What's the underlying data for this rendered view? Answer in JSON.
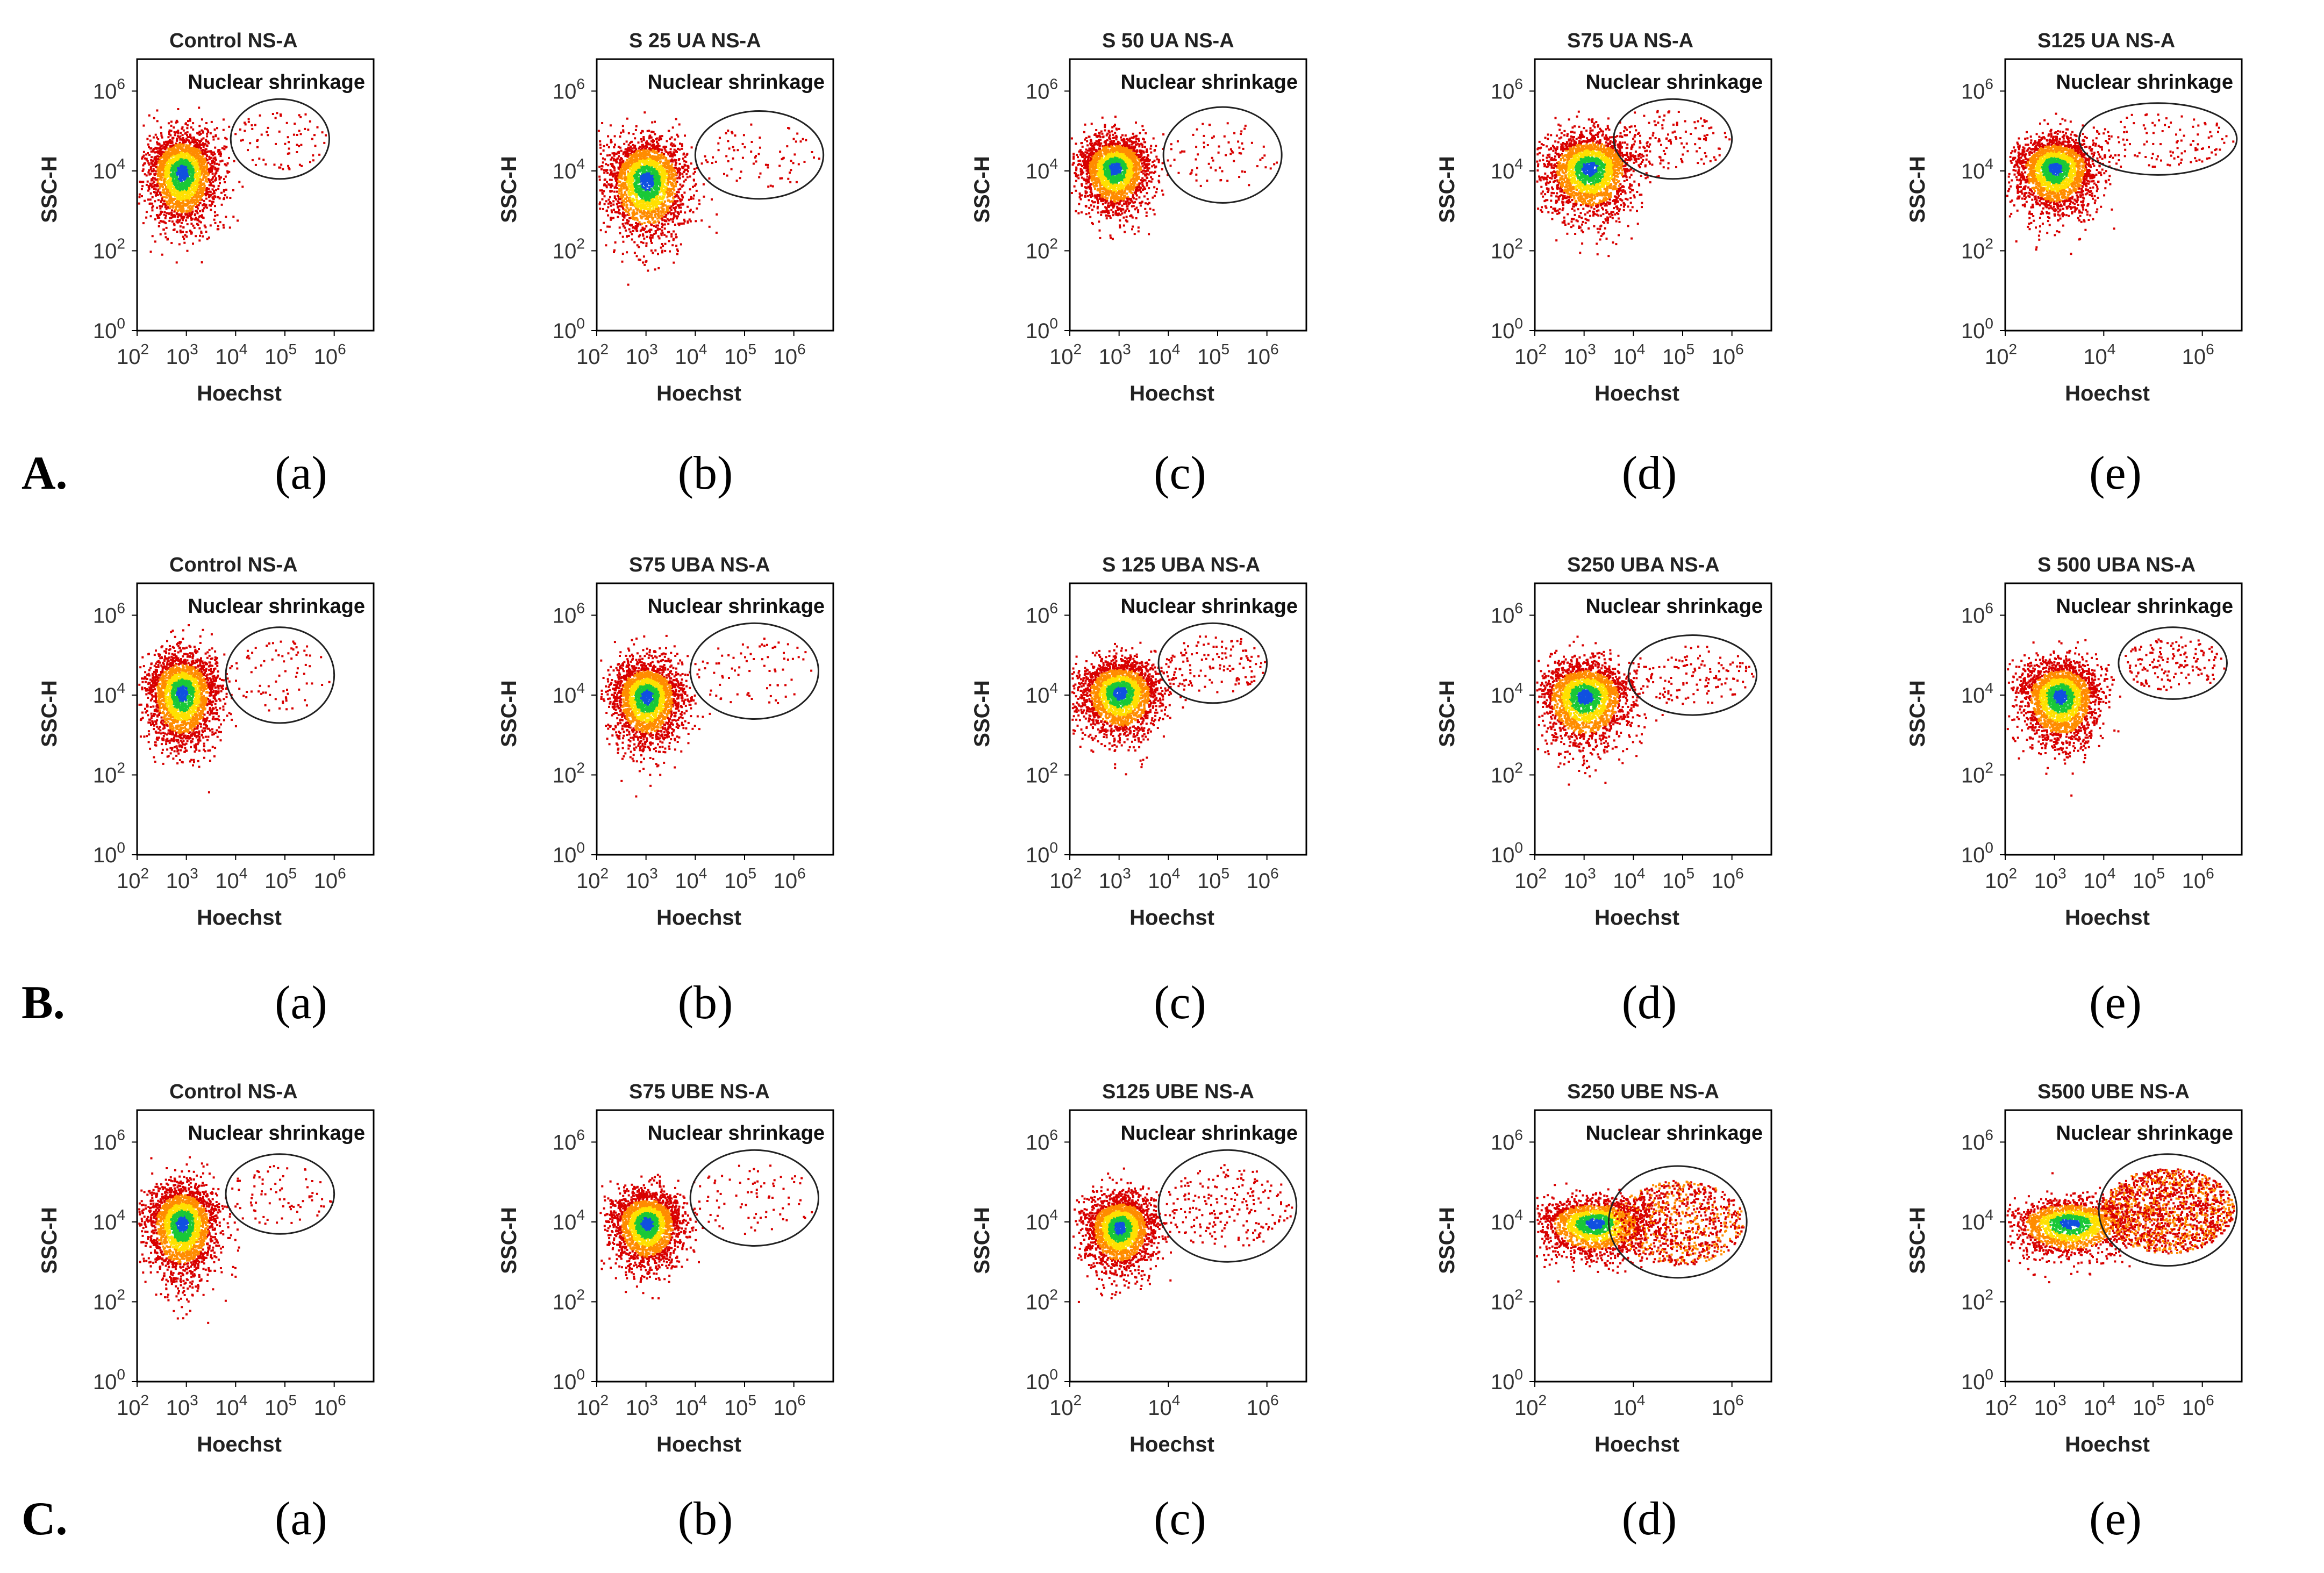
{
  "figure": {
    "rows": [
      {
        "letter": "A.",
        "labels": [
          "(a)",
          "(b)",
          "(c)",
          "(d)",
          "(e)"
        ]
      },
      {
        "letter": "B.",
        "labels": [
          "(a)",
          "(b)",
          "(c)",
          "(d)",
          "(e)"
        ]
      },
      {
        "letter": "C.",
        "labels": [
          "(a)",
          "(b)",
          "(c)",
          "(d)",
          "(e)"
        ]
      }
    ],
    "colors": {
      "low": "#d80000",
      "mid": "#ff8c00",
      "high": "#ffe000",
      "peak": "#19c837",
      "core": "#1050e0",
      "frame": "#000000"
    }
  },
  "chart_data": [
    {
      "type": "scatter",
      "row": "A",
      "panel": "(a)",
      "title": "Control NS-A",
      "gate_label": "Nuclear shrinkage",
      "xlabel": "Hoechst",
      "ylabel": "SSC-H",
      "xticks": [
        "2",
        "3",
        "4",
        "5",
        "6"
      ],
      "yticks": [
        "0",
        "2",
        "4",
        "6"
      ],
      "xlim": [
        2,
        6.8
      ],
      "ylim": [
        0,
        6.8
      ],
      "main_cluster": {
        "x": 2.9,
        "y": 4.0,
        "sx": 0.35,
        "sy": 0.55
      },
      "gate": {
        "cx": 4.9,
        "cy": 4.8,
        "rx": 1.0,
        "ry": 1.0
      },
      "apoptotic_fraction": 0.03,
      "events": 2600
    },
    {
      "type": "scatter",
      "row": "A",
      "panel": "(b)",
      "title": "S 25 UA NS-A",
      "gate_label": "Nuclear shrinkage",
      "xlabel": "Hoechst",
      "ylabel": "SSC-H",
      "xticks": [
        "2",
        "3",
        "4",
        "5",
        "6"
      ],
      "yticks": [
        "0",
        "2",
        "4",
        "6"
      ],
      "xlim": [
        2,
        6.8
      ],
      "ylim": [
        0,
        6.8
      ],
      "main_cluster": {
        "x": 3.0,
        "y": 3.8,
        "sx": 0.4,
        "sy": 0.6
      },
      "gate": {
        "cx": 5.3,
        "cy": 4.4,
        "rx": 1.3,
        "ry": 1.1
      },
      "apoptotic_fraction": 0.03,
      "events": 2600
    },
    {
      "type": "scatter",
      "row": "A",
      "panel": "(c)",
      "title": "S 50 UA NS-A",
      "gate_label": "Nuclear shrinkage",
      "xlabel": "Hoechst",
      "ylabel": "SSC-H",
      "xticks": [
        "2",
        "3",
        "4",
        "5",
        "6"
      ],
      "yticks": [
        "0",
        "2",
        "4",
        "6"
      ],
      "xlim": [
        2,
        6.8
      ],
      "ylim": [
        0,
        6.8
      ],
      "main_cluster": {
        "x": 2.9,
        "y": 4.1,
        "sx": 0.35,
        "sy": 0.45
      },
      "gate": {
        "cx": 5.1,
        "cy": 4.4,
        "rx": 1.2,
        "ry": 1.2
      },
      "apoptotic_fraction": 0.03,
      "events": 2600
    },
    {
      "type": "scatter",
      "row": "A",
      "panel": "(d)",
      "title": "S75 UA NS-A",
      "gate_label": "Nuclear shrinkage",
      "xlabel": "Hoechst",
      "ylabel": "SSC-H",
      "xticks": [
        "2",
        "3",
        "4",
        "5",
        "6"
      ],
      "yticks": [
        "0",
        "2",
        "4",
        "6"
      ],
      "xlim": [
        2,
        6.8
      ],
      "ylim": [
        0,
        6.8
      ],
      "main_cluster": {
        "x": 3.1,
        "y": 4.1,
        "sx": 0.45,
        "sy": 0.5
      },
      "gate": {
        "cx": 4.8,
        "cy": 4.8,
        "rx": 1.2,
        "ry": 1.0
      },
      "apoptotic_fraction": 0.05,
      "events": 2600
    },
    {
      "type": "scatter",
      "row": "A",
      "panel": "(e)",
      "title": "S125 UA NS-A",
      "gate_label": "Nuclear shrinkage",
      "xlabel": "Hoechst",
      "ylabel": "SSC-H",
      "xticks": [
        "2",
        "4",
        "6"
      ],
      "yticks": [
        "0",
        "2",
        "4",
        "6"
      ],
      "xlim": [
        2,
        6.8
      ],
      "ylim": [
        0,
        6.8
      ],
      "main_cluster": {
        "x": 3.0,
        "y": 4.1,
        "sx": 0.4,
        "sy": 0.45
      },
      "gate": {
        "cx": 5.1,
        "cy": 4.8,
        "rx": 1.6,
        "ry": 0.9
      },
      "apoptotic_fraction": 0.05,
      "events": 2600
    },
    {
      "type": "scatter",
      "row": "B",
      "panel": "(a)",
      "title": "Control NS-A",
      "gate_label": "Nuclear shrinkage",
      "xlabel": "Hoechst",
      "ylabel": "SSC-H",
      "xticks": [
        "2",
        "3",
        "4",
        "5",
        "6"
      ],
      "yticks": [
        "0",
        "2",
        "4",
        "6"
      ],
      "xlim": [
        2,
        6.8
      ],
      "ylim": [
        0,
        6.8
      ],
      "main_cluster": {
        "x": 2.9,
        "y": 4.1,
        "sx": 0.35,
        "sy": 0.55
      },
      "gate": {
        "cx": 4.9,
        "cy": 4.5,
        "rx": 1.1,
        "ry": 1.2
      },
      "apoptotic_fraction": 0.03,
      "events": 2600
    },
    {
      "type": "scatter",
      "row": "B",
      "panel": "(b)",
      "title": "S75 UBA NS-A",
      "gate_label": "Nuclear shrinkage",
      "xlabel": "Hoechst",
      "ylabel": "SSC-H",
      "xticks": [
        "2",
        "3",
        "4",
        "5",
        "6"
      ],
      "yticks": [
        "0",
        "2",
        "4",
        "6"
      ],
      "xlim": [
        2,
        6.8
      ],
      "ylim": [
        0,
        6.8
      ],
      "main_cluster": {
        "x": 3.0,
        "y": 4.0,
        "sx": 0.35,
        "sy": 0.5
      },
      "gate": {
        "cx": 5.2,
        "cy": 4.6,
        "rx": 1.3,
        "ry": 1.2
      },
      "apoptotic_fraction": 0.03,
      "events": 2600
    },
    {
      "type": "scatter",
      "row": "B",
      "panel": "(c)",
      "title": "S 125 UBA NS-A",
      "gate_label": "Nuclear shrinkage",
      "xlabel": "Hoechst",
      "ylabel": "SSC-H",
      "xticks": [
        "2",
        "3",
        "4",
        "5",
        "6"
      ],
      "yticks": [
        "0",
        "2",
        "4",
        "6"
      ],
      "xlim": [
        2,
        6.8
      ],
      "ylim": [
        0,
        6.8
      ],
      "main_cluster": {
        "x": 3.0,
        "y": 4.1,
        "sx": 0.4,
        "sy": 0.45
      },
      "gate": {
        "cx": 4.9,
        "cy": 4.8,
        "rx": 1.1,
        "ry": 1.0
      },
      "apoptotic_fraction": 0.05,
      "events": 2600
    },
    {
      "type": "scatter",
      "row": "B",
      "panel": "(d)",
      "title": "S250 UBA NS-A",
      "gate_label": "Nuclear shrinkage",
      "xlabel": "Hoechst",
      "ylabel": "SSC-H",
      "xticks": [
        "2",
        "3",
        "4",
        "5",
        "6"
      ],
      "yticks": [
        "0",
        "2",
        "4",
        "6"
      ],
      "xlim": [
        2,
        6.8
      ],
      "ylim": [
        0,
        6.8
      ],
      "main_cluster": {
        "x": 3.0,
        "y": 4.0,
        "sx": 0.45,
        "sy": 0.5
      },
      "gate": {
        "cx": 5.2,
        "cy": 4.5,
        "rx": 1.3,
        "ry": 1.0
      },
      "apoptotic_fraction": 0.05,
      "events": 2600
    },
    {
      "type": "scatter",
      "row": "B",
      "panel": "(e)",
      "title": "S 500 UBA NS-A",
      "gate_label": "Nuclear shrinkage",
      "xlabel": "Hoechst",
      "ylabel": "SSC-H",
      "xticks": [
        "2",
        "3",
        "4",
        "5",
        "6"
      ],
      "yticks": [
        "0",
        "2",
        "4",
        "6"
      ],
      "xlim": [
        2,
        6.8
      ],
      "ylim": [
        0,
        6.8
      ],
      "main_cluster": {
        "x": 3.1,
        "y": 4.0,
        "sx": 0.4,
        "sy": 0.5
      },
      "gate": {
        "cx": 5.4,
        "cy": 4.8,
        "rx": 1.1,
        "ry": 0.9
      },
      "apoptotic_fraction": 0.06,
      "events": 2600
    },
    {
      "type": "scatter",
      "row": "C",
      "panel": "(a)",
      "title": "Control NS-A",
      "gate_label": "Nuclear shrinkage",
      "xlabel": "Hoechst",
      "ylabel": "SSC-H",
      "xticks": [
        "2",
        "3",
        "4",
        "5",
        "6"
      ],
      "yticks": [
        "0",
        "2",
        "4",
        "6"
      ],
      "xlim": [
        2,
        6.8
      ],
      "ylim": [
        0,
        6.8
      ],
      "main_cluster": {
        "x": 2.9,
        "y": 4.0,
        "sx": 0.35,
        "sy": 0.55
      },
      "gate": {
        "cx": 4.9,
        "cy": 4.7,
        "rx": 1.1,
        "ry": 1.0
      },
      "apoptotic_fraction": 0.03,
      "events": 2600
    },
    {
      "type": "scatter",
      "row": "C",
      "panel": "(b)",
      "title": "S75 UBE NS-A",
      "gate_label": "Nuclear shrinkage",
      "xlabel": "Hoechst",
      "ylabel": "SSC-H",
      "xticks": [
        "2",
        "3",
        "4",
        "5",
        "6"
      ],
      "yticks": [
        "0",
        "2",
        "4",
        "6"
      ],
      "xlim": [
        2,
        6.8
      ],
      "ylim": [
        0,
        6.8
      ],
      "main_cluster": {
        "x": 3.0,
        "y": 4.0,
        "sx": 0.35,
        "sy": 0.45
      },
      "gate": {
        "cx": 5.2,
        "cy": 4.6,
        "rx": 1.3,
        "ry": 1.2
      },
      "apoptotic_fraction": 0.03,
      "events": 2600
    },
    {
      "type": "scatter",
      "row": "C",
      "panel": "(c)",
      "title": "S125 UBE NS-A",
      "gate_label": "Nuclear shrinkage",
      "xlabel": "Hoechst",
      "ylabel": "SSC-H",
      "xticks": [
        "2",
        "4",
        "6"
      ],
      "yticks": [
        "0",
        "2",
        "4",
        "6"
      ],
      "xlim": [
        2,
        6.8
      ],
      "ylim": [
        0,
        6.8
      ],
      "main_cluster": {
        "x": 3.0,
        "y": 3.9,
        "sx": 0.35,
        "sy": 0.45
      },
      "gate": {
        "cx": 5.2,
        "cy": 4.4,
        "rx": 1.4,
        "ry": 1.4
      },
      "apoptotic_fraction": 0.08,
      "events": 2600
    },
    {
      "type": "scatter",
      "row": "C",
      "panel": "(d)",
      "title": "S250 UBE NS-A",
      "gate_label": "Nuclear shrinkage",
      "xlabel": "Hoechst",
      "ylabel": "SSC-H",
      "xticks": [
        "2",
        "4",
        "6"
      ],
      "yticks": [
        "0",
        "2",
        "4",
        "6"
      ],
      "xlim": [
        2,
        6.8
      ],
      "ylim": [
        0,
        6.8
      ],
      "main_cluster": {
        "x": 3.2,
        "y": 4.0,
        "sx": 0.55,
        "sy": 0.35
      },
      "gate": {
        "cx": 4.9,
        "cy": 4.0,
        "rx": 1.4,
        "ry": 1.4
      },
      "apoptotic_fraction": 0.3,
      "events": 3000
    },
    {
      "type": "scatter",
      "row": "C",
      "panel": "(e)",
      "title": "S500 UBE NS-A",
      "gate_label": "Nuclear shrinkage",
      "xlabel": "Hoechst",
      "ylabel": "SSC-H",
      "xticks": [
        "2",
        "3",
        "4",
        "5",
        "6"
      ],
      "yticks": [
        "0",
        "2",
        "4",
        "6"
      ],
      "xlim": [
        2,
        6.8
      ],
      "ylim": [
        0,
        6.8
      ],
      "main_cluster": {
        "x": 3.3,
        "y": 4.0,
        "sx": 0.6,
        "sy": 0.35
      },
      "gate": {
        "cx": 5.3,
        "cy": 4.3,
        "rx": 1.4,
        "ry": 1.4
      },
      "apoptotic_fraction": 0.45,
      "events": 3400
    }
  ]
}
